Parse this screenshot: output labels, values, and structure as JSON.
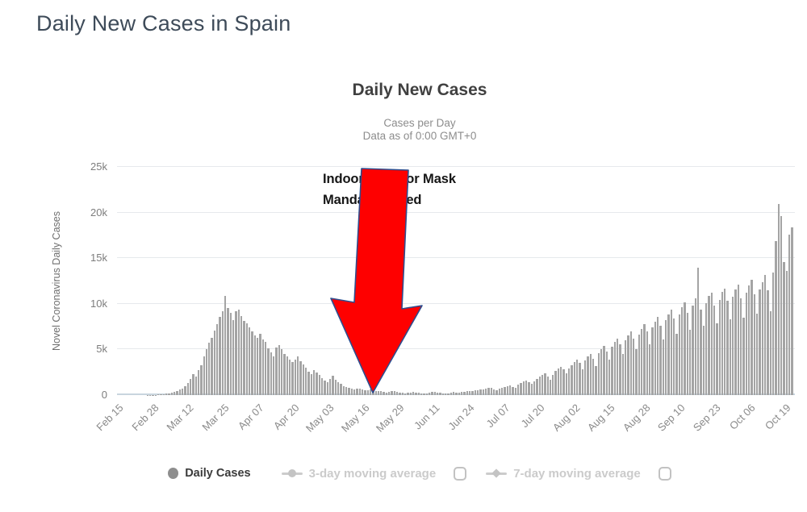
{
  "page": {
    "title": "Daily New Cases in Spain"
  },
  "chart": {
    "title": "Daily New Cases",
    "subtitle1": "Cases per Day",
    "subtitle2": "Data as of 0:00 GMT+0",
    "ylabel": "Novel Coronavirus Daily Cases"
  },
  "annotation": {
    "line1": "Indoor/Outdoor Mask",
    "line2": "Mandate issued",
    "arrow_fill": "#fe0000",
    "arrow_outline": "#2e4d8e"
  },
  "legend": {
    "items": [
      {
        "label": "Daily Cases",
        "marker": "circle",
        "active": true
      },
      {
        "label": "3-day moving average",
        "marker": "line-dot",
        "active": false,
        "checked": false
      },
      {
        "label": "7-day moving average",
        "marker": "line-diamond",
        "active": false,
        "checked": false
      }
    ]
  },
  "chart_data": {
    "type": "bar",
    "title": "Daily New Cases",
    "subtitle": [
      "Cases per Day",
      "Data as of 0:00 GMT+0"
    ],
    "xlabel": "",
    "ylabel": "Novel Coronavirus Daily Cases",
    "ylim": [
      0,
      25000
    ],
    "grid": true,
    "bar_color": "#a4a4a4",
    "start_date": "Feb 15",
    "end_date": "Oct 23",
    "yticks": [
      {
        "value": 0,
        "label": "0"
      },
      {
        "value": 5000,
        "label": "5k"
      },
      {
        "value": 10000,
        "label": "10k"
      },
      {
        "value": 15000,
        "label": "15k"
      },
      {
        "value": 20000,
        "label": "20k"
      },
      {
        "value": 25000,
        "label": "25k"
      }
    ],
    "x_tick_labels": [
      "Feb 15",
      "Feb 28",
      "Mar 12",
      "Mar 25",
      "Apr 07",
      "Apr 20",
      "May 03",
      "May 16",
      "May 29",
      "Jun 11",
      "Jun 24",
      "Jul 07",
      "Jul 20",
      "Aug 02",
      "Aug 15",
      "Aug 28",
      "Sep 10",
      "Sep 23",
      "Oct 06",
      "Oct 19"
    ],
    "x_tick_day_index": [
      0,
      13,
      26,
      39,
      52,
      65,
      78,
      91,
      104,
      117,
      130,
      143,
      156,
      169,
      182,
      195,
      208,
      221,
      234,
      247
    ],
    "annotation_label": "Indoor/Outdoor Mask Mandate issued",
    "annotation_points_near": "May 29",
    "values": [
      0,
      0,
      0,
      0,
      0,
      0,
      0,
      0,
      0,
      3,
      6,
      12,
      20,
      35,
      45,
      60,
      80,
      105,
      140,
      200,
      280,
      350,
      460,
      580,
      720,
      950,
      1300,
      1800,
      2300,
      2000,
      2700,
      3300,
      4200,
      5000,
      5700,
      6300,
      7100,
      7800,
      8600,
      9200,
      10900,
      9500,
      9000,
      8200,
      9200,
      9400,
      8700,
      8100,
      7900,
      7400,
      7000,
      6500,
      6300,
      6700,
      6100,
      5800,
      5100,
      4700,
      4200,
      5200,
      5500,
      5000,
      4500,
      4200,
      3900,
      3600,
      3900,
      4200,
      3700,
      3400,
      3000,
      2600,
      2300,
      2700,
      2500,
      2200,
      1900,
      1600,
      1400,
      1800,
      2100,
      1700,
      1400,
      1200,
      1000,
      900,
      800,
      700,
      650,
      750,
      700,
      600,
      500,
      550,
      620,
      520,
      450,
      480,
      400,
      350,
      300,
      360,
      420,
      460,
      360,
      300,
      260,
      210,
      260,
      310,
      360,
      300,
      250,
      200,
      160,
      220,
      260,
      320,
      370,
      310,
      260,
      210,
      160,
      220,
      270,
      320,
      260,
      300,
      340,
      390,
      440,
      400,
      480,
      540,
      500,
      590,
      650,
      700,
      760,
      820,
      620,
      520,
      720,
      830,
      920,
      1010,
      1090,
      920,
      820,
      1120,
      1310,
      1500,
      1620,
      1410,
      1210,
      1520,
      1810,
      2010,
      2220,
      2410,
      2010,
      1710,
      2210,
      2620,
      2910,
      3110,
      2810,
      2410,
      2920,
      3310,
      3620,
      3910,
      3510,
      2820,
      3820,
      4210,
      4520,
      4010,
      3210,
      4620,
      5010,
      5410,
      4810,
      3910,
      5310,
      5810,
      6210,
      5610,
      4510,
      6010,
      6510,
      7010,
      6210,
      5010,
      6610,
      7210,
      7810,
      7010,
      5610,
      7400,
      8000,
      8600,
      7600,
      6100,
      8200,
      8800,
      9400,
      8400,
      6700,
      8800,
      9600,
      10200,
      9000,
      7200,
      9800,
      10600,
      14000,
      9400,
      7600,
      10100,
      10900,
      11200,
      9800,
      7900,
      10400,
      11300,
      11700,
      10300,
      8300,
      10800,
      11600,
      12100,
      10600,
      8500,
      11200,
      12000,
      12600,
      11000,
      8900,
      11600,
      12400,
      13200,
      11500,
      9200,
      13400,
      16900,
      20900,
      19600,
      14600,
      13600,
      17600,
      18400
    ]
  }
}
